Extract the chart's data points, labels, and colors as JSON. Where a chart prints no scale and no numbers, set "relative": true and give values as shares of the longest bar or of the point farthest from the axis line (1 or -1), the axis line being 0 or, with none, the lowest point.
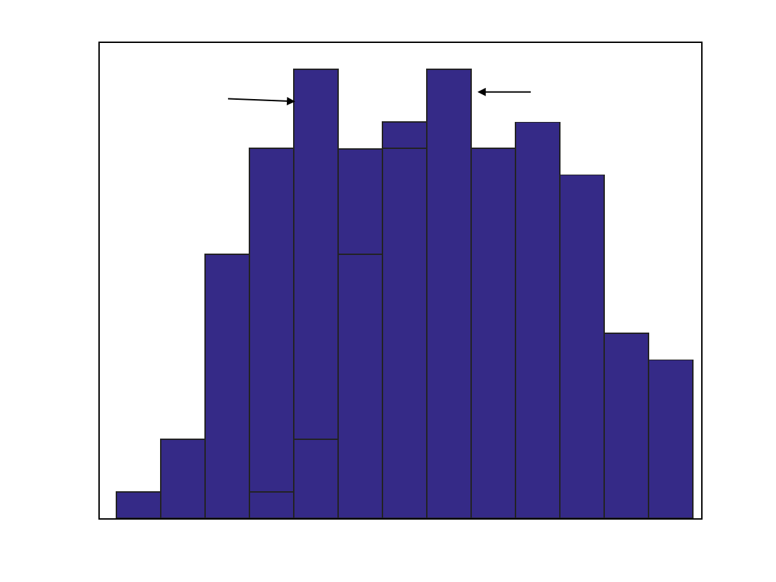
{
  "chart_data": {
    "type": "bar",
    "relative": true,
    "categories": [
      null,
      null,
      null,
      null,
      null,
      null,
      null,
      null,
      null,
      null,
      null,
      null,
      null
    ],
    "series": [
      {
        "color": "#352a87",
        "values": [
          0.059,
          0.176,
          0.588,
          0.059,
          0.176,
          0.588,
          0.824,
          1,
          0.824,
          0.882,
          0.765,
          0.412,
          0.353
        ]
      },
      {
        "color": "#352a87",
        "values": [
          0,
          0,
          0,
          0.765,
          0.824,
          0.235,
          0.059,
          0,
          0,
          0,
          0,
          0,
          0
        ]
      }
    ],
    "stacked": true
  }
}
